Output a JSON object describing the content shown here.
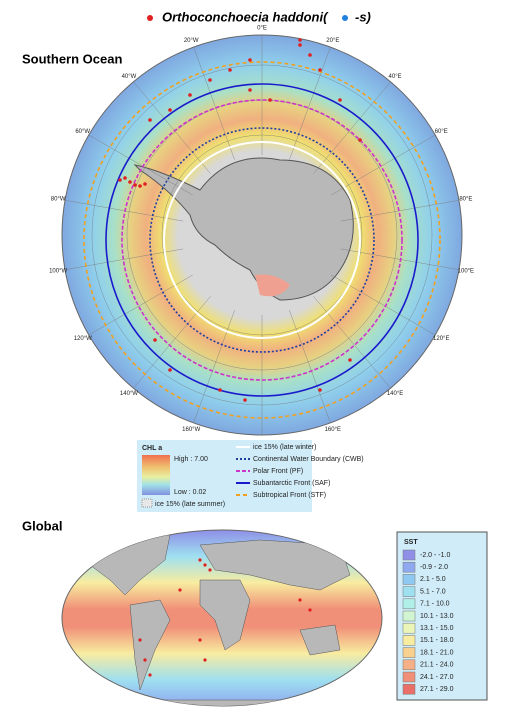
{
  "header": {
    "species": "Orthoconchoecia haddoni(",
    "suffix": "-s)"
  },
  "southern_ocean": {
    "title": "Southern Ocean",
    "east_labels": [
      "0°E",
      "20°E",
      "40°E",
      "60°E",
      "80°E",
      "100°E",
      "120°E",
      "140°E",
      "160°E"
    ],
    "west_labels": [
      "20°W",
      "40°W",
      "60°W",
      "80°W",
      "100°W",
      "120°W",
      "140°W",
      "160°W"
    ]
  },
  "chl_legend": {
    "title": "CHL a",
    "high": "High : 7.00",
    "low": "Low : 0.02",
    "ice_summer": "ice 15% (late summer)"
  },
  "line_legend": [
    {
      "label": "ice 15% (late winter)",
      "color": "#ffffff",
      "dash": "none"
    },
    {
      "label": "Continental Water Boundary (CWB)",
      "color": "#1f3f9f",
      "dash": "2 2"
    },
    {
      "label": "Polar Front (PF)",
      "color": "#cc33cc",
      "dash": "4 2"
    },
    {
      "label": "Subantarctic  Front (SAF)",
      "color": "#1a1acc",
      "dash": "none"
    },
    {
      "label": "Subtropical Front (STF)",
      "color": "#f0a020",
      "dash": "4 3"
    }
  ],
  "global": {
    "title": "Global"
  },
  "sst_legend": {
    "title": "SST",
    "classes": [
      {
        "label": "-2.0 - -1.0",
        "color": "#8f8fe8"
      },
      {
        "label": "-0.9 - 2.0",
        "color": "#8fa8f0"
      },
      {
        "label": "2.1 - 5.0",
        "color": "#8fc8f0"
      },
      {
        "label": "5.1 - 7.0",
        "color": "#9fe0f0"
      },
      {
        "label": "7.1 - 10.0",
        "color": "#b0f0e8"
      },
      {
        "label": "10.1 - 13.0",
        "color": "#d0f5d0"
      },
      {
        "label": "13.1 - 15.0",
        "color": "#ecf5b8"
      },
      {
        "label": "15.1 - 18.0",
        "color": "#f8eca0"
      },
      {
        "label": "18.1 - 21.0",
        "color": "#f8d090"
      },
      {
        "label": "21.1 - 24.0",
        "color": "#f5b088"
      },
      {
        "label": "24.1 - 27.0",
        "color": "#f09078"
      },
      {
        "label": "27.1 - 29.0",
        "color": "#e87068"
      }
    ]
  }
}
